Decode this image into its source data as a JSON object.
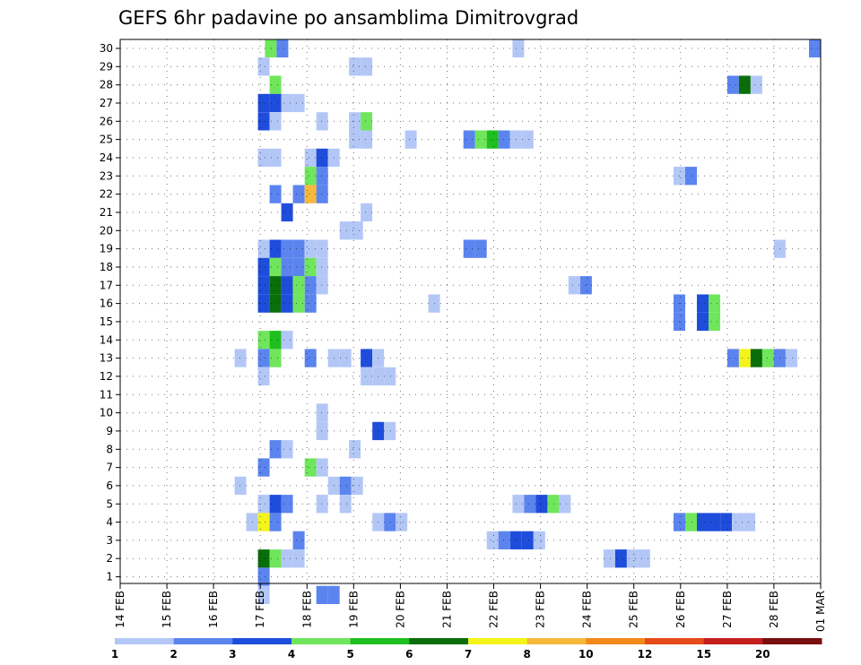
{
  "chart_data": {
    "type": "heatmap",
    "title": "GEFS 6hr padavine po ansamblima Dimitrovgrad",
    "xlabel": "",
    "ylabel": "",
    "x_tick_labels": [
      "14 FEB",
      "15 FEB",
      "16 FEB",
      "17 FEB",
      "18 FEB",
      "19 FEB",
      "20 FEB",
      "21 FEB",
      "22 FEB",
      "23 FEB",
      "24 FEB",
      "25 FEB",
      "26 FEB",
      "27 FEB",
      "28 FEB",
      "01 MAR"
    ],
    "x_range_days": [
      0,
      15
    ],
    "y_tick_labels": [
      "1",
      "2",
      "3",
      "4",
      "5",
      "6",
      "7",
      "8",
      "9",
      "10",
      "11",
      "12",
      "13",
      "14",
      "15",
      "16",
      "17",
      "18",
      "19",
      "20",
      "21",
      "22",
      "23",
      "24",
      "25",
      "26",
      "27",
      "28",
      "29",
      "30"
    ],
    "y_range": [
      0,
      30
    ],
    "grid": true,
    "colorbar": {
      "labels": [
        "1",
        "2",
        "3",
        "4",
        "5",
        "6",
        "7",
        "8",
        "10",
        "12",
        "15",
        "20"
      ],
      "colors": [
        "#b3c7f7",
        "#5b84ee",
        "#1f4ddb",
        "#6fe65c",
        "#1fbf1f",
        "#0a6e0a",
        "#f4f41a",
        "#f8b83c",
        "#f48a1a",
        "#e64a1a",
        "#c41e1e",
        "#7a0f0f"
      ]
    },
    "cells": [
      {
        "m": 30,
        "d": 3.1,
        "c": 3
      },
      {
        "m": 30,
        "d": 3.35,
        "c": 1
      },
      {
        "m": 30,
        "d": 8.4,
        "c": 0
      },
      {
        "m": 30,
        "d": 14.75,
        "c": 1
      },
      {
        "m": 29,
        "d": 2.95,
        "c": 0
      },
      {
        "m": 29,
        "d": 4.9,
        "c": 0
      },
      {
        "m": 29,
        "d": 5.15,
        "c": 0
      },
      {
        "m": 28,
        "d": 3.2,
        "c": 3
      },
      {
        "m": 28,
        "d": 13.0,
        "c": 1
      },
      {
        "m": 28,
        "d": 13.25,
        "c": 5
      },
      {
        "m": 28,
        "d": 13.5,
        "c": 0
      },
      {
        "m": 27,
        "d": 2.95,
        "c": 2
      },
      {
        "m": 27,
        "d": 3.2,
        "c": 2
      },
      {
        "m": 27,
        "d": 3.45,
        "c": 0
      },
      {
        "m": 27,
        "d": 3.7,
        "c": 0
      },
      {
        "m": 26,
        "d": 2.95,
        "c": 2
      },
      {
        "m": 26,
        "d": 3.2,
        "c": 0
      },
      {
        "m": 26,
        "d": 4.2,
        "c": 0
      },
      {
        "m": 26,
        "d": 4.9,
        "c": 0
      },
      {
        "m": 26,
        "d": 5.15,
        "c": 3
      },
      {
        "m": 25,
        "d": 4.9,
        "c": 0
      },
      {
        "m": 25,
        "d": 5.15,
        "c": 0
      },
      {
        "m": 25,
        "d": 6.1,
        "c": 0
      },
      {
        "m": 25,
        "d": 7.35,
        "c": 1
      },
      {
        "m": 25,
        "d": 7.6,
        "c": 3
      },
      {
        "m": 25,
        "d": 7.85,
        "c": 4
      },
      {
        "m": 25,
        "d": 8.1,
        "c": 1
      },
      {
        "m": 25,
        "d": 8.35,
        "c": 0
      },
      {
        "m": 25,
        "d": 8.6,
        "c": 0
      },
      {
        "m": 24,
        "d": 2.95,
        "c": 0
      },
      {
        "m": 24,
        "d": 3.2,
        "c": 0
      },
      {
        "m": 24,
        "d": 3.95,
        "c": 0
      },
      {
        "m": 24,
        "d": 4.2,
        "c": 2
      },
      {
        "m": 24,
        "d": 4.45,
        "c": 0
      },
      {
        "m": 23,
        "d": 3.95,
        "c": 3
      },
      {
        "m": 23,
        "d": 4.2,
        "c": 1
      },
      {
        "m": 23,
        "d": 11.85,
        "c": 0
      },
      {
        "m": 23,
        "d": 12.1,
        "c": 1
      },
      {
        "m": 22,
        "d": 3.2,
        "c": 1
      },
      {
        "m": 22,
        "d": 3.7,
        "c": 1
      },
      {
        "m": 22,
        "d": 3.95,
        "c": 7
      },
      {
        "m": 22,
        "d": 4.2,
        "c": 1
      },
      {
        "m": 21,
        "d": 3.45,
        "c": 2
      },
      {
        "m": 21,
        "d": 5.15,
        "c": 0
      },
      {
        "m": 20,
        "d": 4.7,
        "c": 0
      },
      {
        "m": 20,
        "d": 4.95,
        "c": 0
      },
      {
        "m": 19,
        "d": 2.95,
        "c": 0
      },
      {
        "m": 19,
        "d": 3.2,
        "c": 2
      },
      {
        "m": 19,
        "d": 3.45,
        "c": 1
      },
      {
        "m": 19,
        "d": 3.7,
        "c": 1
      },
      {
        "m": 19,
        "d": 3.95,
        "c": 0
      },
      {
        "m": 19,
        "d": 4.2,
        "c": 0
      },
      {
        "m": 19,
        "d": 7.35,
        "c": 1
      },
      {
        "m": 19,
        "d": 7.6,
        "c": 1
      },
      {
        "m": 19,
        "d": 14.0,
        "c": 0
      },
      {
        "m": 18,
        "d": 2.95,
        "c": 2
      },
      {
        "m": 18,
        "d": 3.2,
        "c": 3
      },
      {
        "m": 18,
        "d": 3.45,
        "c": 1
      },
      {
        "m": 18,
        "d": 3.7,
        "c": 1
      },
      {
        "m": 18,
        "d": 3.95,
        "c": 3
      },
      {
        "m": 18,
        "d": 4.2,
        "c": 0
      },
      {
        "m": 17,
        "d": 2.95,
        "c": 2
      },
      {
        "m": 17,
        "d": 3.2,
        "c": 5
      },
      {
        "m": 17,
        "d": 3.45,
        "c": 2
      },
      {
        "m": 17,
        "d": 3.7,
        "c": 3
      },
      {
        "m": 17,
        "d": 3.95,
        "c": 1
      },
      {
        "m": 17,
        "d": 4.2,
        "c": 0
      },
      {
        "m": 17,
        "d": 9.6,
        "c": 0
      },
      {
        "m": 17,
        "d": 9.85,
        "c": 1
      },
      {
        "m": 16,
        "d": 2.95,
        "c": 2
      },
      {
        "m": 16,
        "d": 3.2,
        "c": 5
      },
      {
        "m": 16,
        "d": 3.45,
        "c": 2
      },
      {
        "m": 16,
        "d": 3.7,
        "c": 3
      },
      {
        "m": 16,
        "d": 3.95,
        "c": 1
      },
      {
        "m": 16,
        "d": 6.6,
        "c": 0
      },
      {
        "m": 16,
        "d": 11.85,
        "c": 1
      },
      {
        "m": 16,
        "d": 12.35,
        "c": 2
      },
      {
        "m": 16,
        "d": 12.6,
        "c": 3
      },
      {
        "m": 15,
        "d": 11.85,
        "c": 1
      },
      {
        "m": 15,
        "d": 12.35,
        "c": 2
      },
      {
        "m": 15,
        "d": 12.6,
        "c": 3
      },
      {
        "m": 14,
        "d": 2.95,
        "c": 3
      },
      {
        "m": 14,
        "d": 3.2,
        "c": 4
      },
      {
        "m": 14,
        "d": 3.45,
        "c": 0
      },
      {
        "m": 13,
        "d": 2.45,
        "c": 0
      },
      {
        "m": 13,
        "d": 2.95,
        "c": 1
      },
      {
        "m": 13,
        "d": 3.2,
        "c": 3
      },
      {
        "m": 13,
        "d": 3.95,
        "c": 1
      },
      {
        "m": 13,
        "d": 4.45,
        "c": 0
      },
      {
        "m": 13,
        "d": 4.7,
        "c": 0
      },
      {
        "m": 13,
        "d": 5.15,
        "c": 2
      },
      {
        "m": 13,
        "d": 5.4,
        "c": 0
      },
      {
        "m": 13,
        "d": 13.0,
        "c": 1
      },
      {
        "m": 13,
        "d": 13.25,
        "c": 6
      },
      {
        "m": 13,
        "d": 13.5,
        "c": 5
      },
      {
        "m": 13,
        "d": 13.75,
        "c": 3
      },
      {
        "m": 13,
        "d": 14.0,
        "c": 1
      },
      {
        "m": 13,
        "d": 14.25,
        "c": 0
      },
      {
        "m": 12,
        "d": 2.95,
        "c": 0
      },
      {
        "m": 12,
        "d": 5.15,
        "c": 0
      },
      {
        "m": 12,
        "d": 5.4,
        "c": 0
      },
      {
        "m": 12,
        "d": 5.65,
        "c": 0
      },
      {
        "m": 10,
        "d": 4.2,
        "c": 0
      },
      {
        "m": 9,
        "d": 4.2,
        "c": 0
      },
      {
        "m": 9,
        "d": 5.4,
        "c": 2
      },
      {
        "m": 9,
        "d": 5.65,
        "c": 0
      },
      {
        "m": 8,
        "d": 3.2,
        "c": 1
      },
      {
        "m": 8,
        "d": 3.45,
        "c": 0
      },
      {
        "m": 8,
        "d": 4.9,
        "c": 0
      },
      {
        "m": 7,
        "d": 2.95,
        "c": 1
      },
      {
        "m": 7,
        "d": 3.95,
        "c": 3
      },
      {
        "m": 7,
        "d": 4.2,
        "c": 0
      },
      {
        "m": 6,
        "d": 2.45,
        "c": 0
      },
      {
        "m": 6,
        "d": 4.45,
        "c": 0
      },
      {
        "m": 6,
        "d": 4.7,
        "c": 1
      },
      {
        "m": 6,
        "d": 4.95,
        "c": 0
      },
      {
        "m": 5,
        "d": 2.95,
        "c": 0
      },
      {
        "m": 5,
        "d": 3.2,
        "c": 2
      },
      {
        "m": 5,
        "d": 3.45,
        "c": 1
      },
      {
        "m": 5,
        "d": 4.2,
        "c": 0
      },
      {
        "m": 5,
        "d": 4.7,
        "c": 0
      },
      {
        "m": 5,
        "d": 8.4,
        "c": 0
      },
      {
        "m": 5,
        "d": 8.65,
        "c": 1
      },
      {
        "m": 5,
        "d": 8.9,
        "c": 2
      },
      {
        "m": 5,
        "d": 9.15,
        "c": 3
      },
      {
        "m": 5,
        "d": 9.4,
        "c": 0
      },
      {
        "m": 4,
        "d": 2.7,
        "c": 0
      },
      {
        "m": 4,
        "d": 2.95,
        "c": 6
      },
      {
        "m": 4,
        "d": 3.2,
        "c": 1
      },
      {
        "m": 4,
        "d": 5.4,
        "c": 0
      },
      {
        "m": 4,
        "d": 5.65,
        "c": 1
      },
      {
        "m": 4,
        "d": 5.9,
        "c": 0
      },
      {
        "m": 4,
        "d": 11.85,
        "c": 1
      },
      {
        "m": 4,
        "d": 12.1,
        "c": 3
      },
      {
        "m": 4,
        "d": 12.35,
        "c": 2
      },
      {
        "m": 4,
        "d": 12.6,
        "c": 2
      },
      {
        "m": 4,
        "d": 12.85,
        "c": 2
      },
      {
        "m": 4,
        "d": 13.1,
        "c": 0
      },
      {
        "m": 4,
        "d": 13.35,
        "c": 0
      },
      {
        "m": 3,
        "d": 3.7,
        "c": 1
      },
      {
        "m": 3,
        "d": 7.85,
        "c": 0
      },
      {
        "m": 3,
        "d": 8.1,
        "c": 1
      },
      {
        "m": 3,
        "d": 8.35,
        "c": 2
      },
      {
        "m": 3,
        "d": 8.6,
        "c": 2
      },
      {
        "m": 3,
        "d": 8.85,
        "c": 0
      },
      {
        "m": 2,
        "d": 2.95,
        "c": 5
      },
      {
        "m": 2,
        "d": 3.2,
        "c": 3
      },
      {
        "m": 2,
        "d": 3.45,
        "c": 0
      },
      {
        "m": 2,
        "d": 3.7,
        "c": 0
      },
      {
        "m": 2,
        "d": 10.35,
        "c": 0
      },
      {
        "m": 2,
        "d": 10.6,
        "c": 2
      },
      {
        "m": 2,
        "d": 10.85,
        "c": 0
      },
      {
        "m": 2,
        "d": 11.1,
        "c": 0
      },
      {
        "m": 1,
        "d": 2.95,
        "c": 1
      },
      {
        "m": 0,
        "d": 2.95,
        "c": 0
      },
      {
        "m": 0,
        "d": 4.2,
        "c": 1
      },
      {
        "m": 0,
        "d": 4.45,
        "c": 1
      }
    ]
  }
}
